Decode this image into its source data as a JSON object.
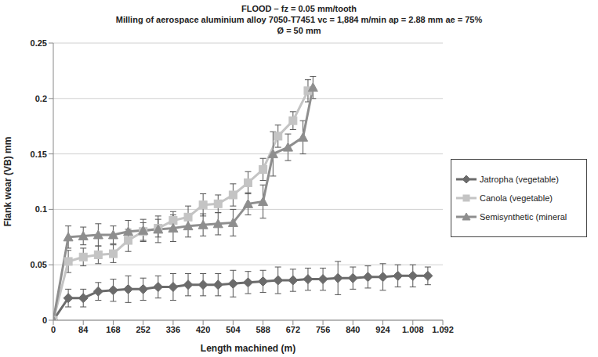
{
  "chart_data": {
    "type": "line",
    "title": "FLOOD – fz = 0.05 mm/tooth",
    "subtitle": [
      "Milling of aerospace aluminium alloy 7050-T7451 vc = 1,884 m/min ap = 2.88 mm ae = 75%",
      "Ø = 50 mm"
    ],
    "x_label": "Length machined (m)",
    "y_label": "Flank wear (VB) mm",
    "xlim": [
      0,
      1092
    ],
    "xticks": [
      0,
      84,
      168,
      252,
      336,
      420,
      504,
      588,
      672,
      756,
      840,
      924,
      {
        "value": 1008,
        "label": "1.008"
      },
      {
        "value": 1092,
        "label": "1.092"
      }
    ],
    "ylim": [
      0,
      0.25
    ],
    "yticks": [
      0,
      0.05,
      0.1,
      0.15,
      0.2,
      0.25
    ],
    "grid": true,
    "legend": "right",
    "series": [
      {
        "name": "Jatropha (vegetable)",
        "color": "#6b6b6b",
        "marker": "diamond",
        "x": [
          0,
          42,
          84,
          126,
          168,
          210,
          252,
          294,
          336,
          378,
          420,
          462,
          504,
          546,
          588,
          630,
          672,
          714,
          756,
          798,
          840,
          882,
          924,
          966,
          1008,
          1050
        ],
        "values": [
          0,
          0.02,
          0.02,
          0.026,
          0.027,
          0.028,
          0.028,
          0.03,
          0.03,
          0.032,
          0.032,
          0.032,
          0.033,
          0.034,
          0.035,
          0.036,
          0.036,
          0.037,
          0.037,
          0.038,
          0.038,
          0.039,
          0.039,
          0.04,
          0.04,
          0.04
        ],
        "errors": [
          0,
          0.008,
          0.008,
          0.008,
          0.01,
          0.012,
          0.01,
          0.01,
          0.012,
          0.01,
          0.01,
          0.01,
          0.012,
          0.01,
          0.01,
          0.012,
          0.01,
          0.01,
          0.01,
          0.015,
          0.01,
          0.01,
          0.012,
          0.01,
          0.01,
          0.008
        ]
      },
      {
        "name": "Canola (vegetable)",
        "color": "#c4c4c4",
        "marker": "square",
        "x": [
          0,
          42,
          84,
          126,
          168,
          210,
          252,
          294,
          336,
          378,
          420,
          462,
          504,
          546,
          588,
          630,
          672,
          714
        ],
        "values": [
          0,
          0.053,
          0.057,
          0.059,
          0.06,
          0.072,
          0.08,
          0.083,
          0.09,
          0.093,
          0.104,
          0.105,
          0.113,
          0.124,
          0.136,
          0.166,
          0.18,
          0.207
        ],
        "errors": [
          0,
          0.01,
          0.008,
          0.008,
          0.008,
          0.01,
          0.008,
          0.008,
          0.008,
          0.01,
          0.01,
          0.008,
          0.01,
          0.01,
          0.01,
          0.01,
          0.008,
          0.01
        ]
      },
      {
        "name": "Semisynthetic (mineral",
        "color": "#8e8e8e",
        "marker": "triangle",
        "x": [
          0,
          42,
          84,
          126,
          168,
          210,
          252,
          294,
          336,
          378,
          420,
          462,
          504,
          546,
          588,
          616,
          658,
          700,
          728
        ],
        "values": [
          0,
          0.075,
          0.076,
          0.077,
          0.077,
          0.08,
          0.081,
          0.082,
          0.083,
          0.085,
          0.086,
          0.087,
          0.088,
          0.105,
          0.107,
          0.15,
          0.156,
          0.165,
          0.21
        ],
        "errors": [
          0,
          0.01,
          0.008,
          0.01,
          0.008,
          0.01,
          0.01,
          0.012,
          0.012,
          0.01,
          0.01,
          0.01,
          0.012,
          0.01,
          0.015,
          0.02,
          0.012,
          0.015,
          0.01
        ]
      }
    ]
  }
}
